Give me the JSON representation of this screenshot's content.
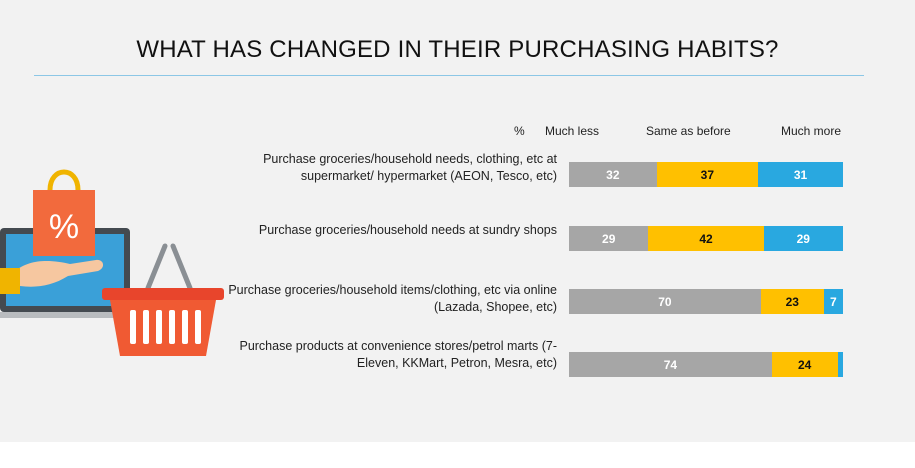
{
  "title": "WHAT HAS CHANGED IN THEIR PURCHASING HABITS?",
  "colors": {
    "background": "#f2f2f2",
    "rule": "#8cc7e6",
    "much_less": "#a6a6a6",
    "same": "#ffc000",
    "much_more": "#29a8e0"
  },
  "chart_data": {
    "type": "bar",
    "orientation": "horizontal",
    "stacked": true,
    "unit": "%",
    "categories": [
      "Purchase groceries/household needs, clothing, etc at supermarket/ hypermarket (AEON, Tesco, etc)",
      "Purchase groceries/household needs at sundry shops",
      "Purchase groceries/household items/clothing, etc via online (Lazada, Shopee, etc)",
      "Purchase products at convenience stores/petrol marts (7-Eleven, KKMart, Petron, Mesra, etc)"
    ],
    "series": [
      {
        "name": "Much less",
        "values": [
          32,
          29,
          70,
          74
        ]
      },
      {
        "name": "Same as before",
        "values": [
          37,
          42,
          23,
          24
        ]
      },
      {
        "name": "Much more",
        "values": [
          31,
          29,
          7,
          2
        ]
      }
    ],
    "data_labels": [
      [
        "32",
        "37",
        "31"
      ],
      [
        "29",
        "42",
        "29"
      ],
      [
        "70",
        "23",
        "7"
      ],
      [
        "74",
        "24",
        ""
      ]
    ],
    "xlim": [
      0,
      100
    ],
    "legend": "top",
    "grid": false
  }
}
